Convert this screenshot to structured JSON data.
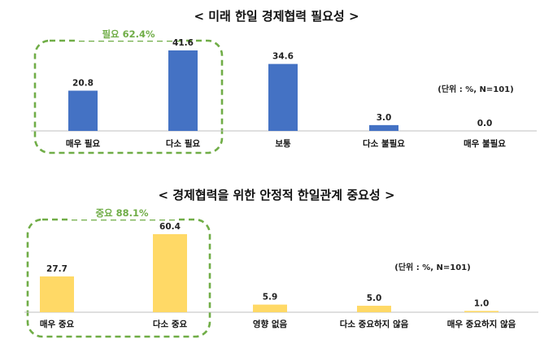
{
  "chart_data": [
    {
      "type": "bar",
      "title": "< 미래 한일 경제협력 필요성 >",
      "unit_note": "(단위 : %, N=101)",
      "categories": [
        "매우 필요",
        "다소 필요",
        "보통",
        "다소 불필요",
        "매우 불필요"
      ],
      "values": [
        20.8,
        41.6,
        34.6,
        3.0,
        0.0
      ],
      "value_labels": [
        "20.8",
        "41.6",
        "34.6",
        "3.0",
        "0.0"
      ],
      "ylim": [
        0,
        50
      ],
      "color": "#4472C4",
      "group_highlight": {
        "label": "필요 62.4%",
        "color": "#70AD47",
        "indices": [
          0,
          1
        ]
      }
    },
    {
      "type": "bar",
      "title": "< 경제협력을 위한 안정적 한일관계 중요성 >",
      "unit_note": "(단위 : %, N=101)",
      "categories": [
        "매우 중요",
        "다소 중요",
        "영향 없음",
        "다소 중요하지 않음",
        "매우 중요하지 않음"
      ],
      "values": [
        27.7,
        60.4,
        5.9,
        5.0,
        1.0
      ],
      "value_labels": [
        "27.7",
        "60.4",
        "5.9",
        "5.0",
        "1.0"
      ],
      "ylim": [
        0,
        70
      ],
      "color": "#FFD966",
      "group_highlight": {
        "label": "중요 88.1%",
        "color": "#70AD47",
        "indices": [
          0,
          1
        ]
      }
    }
  ]
}
